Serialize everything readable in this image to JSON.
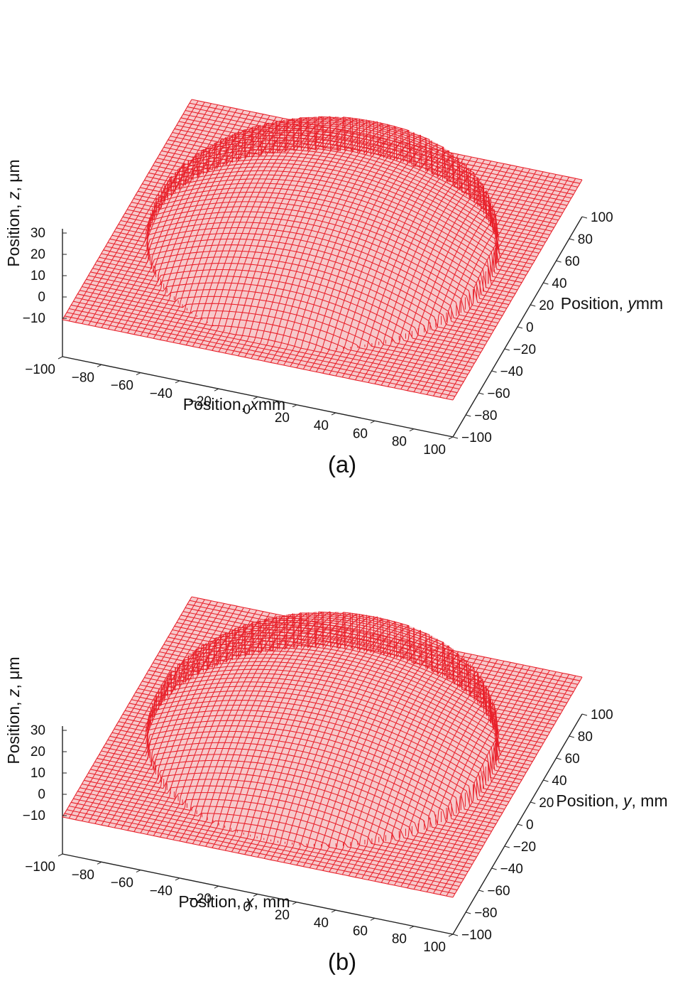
{
  "chart_data": [
    {
      "type": "surface3d",
      "caption": "(a)",
      "xlabel": {
        "prefix": "Position, ",
        "var": "x",
        "suffix": "mm"
      },
      "ylabel": {
        "prefix": "Position, ",
        "var": "y",
        "suffix": "mm"
      },
      "zlabel": {
        "prefix": "Position, ",
        "var": "z",
        "suffix": ", μm"
      },
      "xlim": [
        -100,
        100
      ],
      "ylim": [
        -100,
        100
      ],
      "zlim": [
        -10,
        30
      ],
      "x_ticks": [
        "−100",
        "−80",
        "−60",
        "−40",
        "−20",
        "0",
        "20",
        "40",
        "60",
        "80",
        "100"
      ],
      "y_ticks": [
        "−100",
        "−80",
        "−60",
        "−40",
        "−20",
        "0",
        "20",
        "40",
        "60",
        "80",
        "100"
      ],
      "z_ticks": [
        "−10",
        "0",
        "10",
        "20",
        "30"
      ],
      "surface": {
        "outer_z": -10,
        "disk_radius": 85,
        "center_z": 18,
        "rim_z": -2,
        "tilt_z": 12
      },
      "line_color": "#e8202a",
      "fill_color": "#f7c9cb",
      "grid": false
    },
    {
      "type": "surface3d",
      "caption": "(b)",
      "xlabel": {
        "prefix": "Position, ",
        "var": "x",
        "suffix": ", mm"
      },
      "ylabel": {
        "prefix": "Position, ",
        "var": "y",
        "suffix": ", mm"
      },
      "zlabel": {
        "prefix": "Position, ",
        "var": "z",
        "suffix": ", μm"
      },
      "xlim": [
        -100,
        100
      ],
      "ylim": [
        -100,
        100
      ],
      "zlim": [
        -10,
        30
      ],
      "x_ticks": [
        "−100",
        "−80",
        "−60",
        "−40",
        "−20",
        "0",
        "20",
        "40",
        "60",
        "80",
        "100"
      ],
      "y_ticks": [
        "−100",
        "−80",
        "−60",
        "−40",
        "−20",
        "0",
        "20",
        "40",
        "60",
        "80",
        "100"
      ],
      "z_ticks": [
        "−10",
        "0",
        "10",
        "20",
        "30"
      ],
      "surface": {
        "outer_z": -10,
        "disk_radius": 85,
        "center_z": 17,
        "rim_z": -1,
        "tilt_z": 12
      },
      "line_color": "#e8202a",
      "fill_color": "#f7c9cb",
      "grid": false
    }
  ]
}
